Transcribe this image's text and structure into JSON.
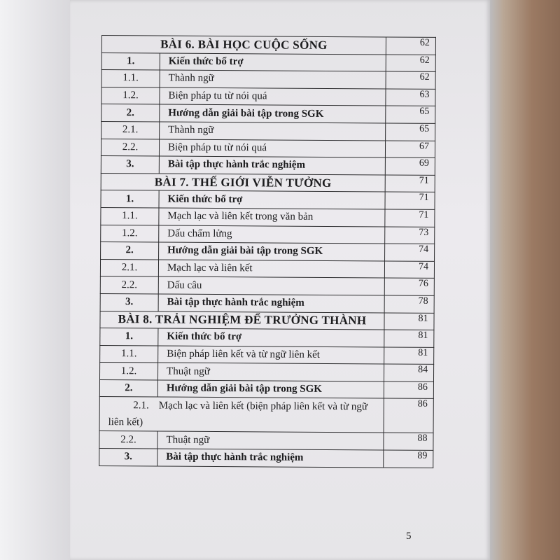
{
  "toc": [
    {
      "type": "heading",
      "title": "BÀI 6. BÀI HỌC CUỘC SỐNG",
      "page": "62"
    },
    {
      "type": "item",
      "bold": true,
      "index": "1.",
      "title": "Kiến thức bổ trợ",
      "page": "62"
    },
    {
      "type": "item",
      "bold": false,
      "index": "1.1.",
      "title": "Thành ngữ",
      "page": "62"
    },
    {
      "type": "item",
      "bold": false,
      "index": "1.2.",
      "title": "Biện pháp tu từ nói quá",
      "page": "63"
    },
    {
      "type": "item",
      "bold": true,
      "index": "2.",
      "title": "Hướng dẫn giải bài tập trong SGK",
      "page": "65"
    },
    {
      "type": "item",
      "bold": false,
      "index": "2.1.",
      "title": "Thành ngữ",
      "page": "65"
    },
    {
      "type": "item",
      "bold": false,
      "index": "2.2.",
      "title": "Biện pháp tu từ nói quá",
      "page": "67"
    },
    {
      "type": "item",
      "bold": true,
      "index": "3.",
      "title": "Bài tập thực hành trắc nghiệm",
      "page": "69"
    },
    {
      "type": "heading",
      "title": "BÀI 7. THẾ GIỚI VIỄN TƯỞNG",
      "page": "71"
    },
    {
      "type": "item",
      "bold": true,
      "index": "1.",
      "title": "Kiến thức bổ trợ",
      "page": "71"
    },
    {
      "type": "item",
      "bold": false,
      "index": "1.1.",
      "title": "Mạch lạc và liên kết trong văn bản",
      "page": "71"
    },
    {
      "type": "item",
      "bold": false,
      "index": "1.2.",
      "title": "Dấu chấm lửng",
      "page": "73"
    },
    {
      "type": "item",
      "bold": true,
      "index": "2.",
      "title": "Hướng dẫn giải bài tập trong SGK",
      "page": "74"
    },
    {
      "type": "item",
      "bold": false,
      "index": "2.1.",
      "title": "Mạch lạc và liên kết",
      "page": "74"
    },
    {
      "type": "item",
      "bold": false,
      "index": "2.2.",
      "title": "Dấu câu",
      "page": "76"
    },
    {
      "type": "item",
      "bold": true,
      "index": "3.",
      "title": "Bài tập thực hành trắc nghiệm",
      "page": "78"
    },
    {
      "type": "heading",
      "title": "BÀI 8. TRẢI NGHIỆM ĐỂ TRƯỞNG THÀNH",
      "page": "81"
    },
    {
      "type": "item",
      "bold": true,
      "index": "1.",
      "title": "Kiến thức bổ trợ",
      "page": "81"
    },
    {
      "type": "item",
      "bold": false,
      "index": "1.1.",
      "title": "Biện pháp liên kết và từ ngữ liên kết",
      "page": "81"
    },
    {
      "type": "item",
      "bold": false,
      "index": "1.2.",
      "title": "Thuật ngữ",
      "page": "84"
    },
    {
      "type": "item",
      "bold": true,
      "index": "2.",
      "title": "Hướng dẫn giải bài tập trong SGK",
      "page": "86"
    },
    {
      "type": "wrap",
      "bold": false,
      "index": "2.1.",
      "title": "Mạch lạc và liên kết (biện pháp liên kết và từ ngữ liên kết)",
      "page": "86"
    },
    {
      "type": "item",
      "bold": false,
      "index": "2.2.",
      "title": "Thuật ngữ",
      "page": "88"
    },
    {
      "type": "item",
      "bold": true,
      "index": "3.",
      "title": "Bài tập thực hành trắc nghiệm",
      "page": "89"
    }
  ],
  "page_number": "5"
}
